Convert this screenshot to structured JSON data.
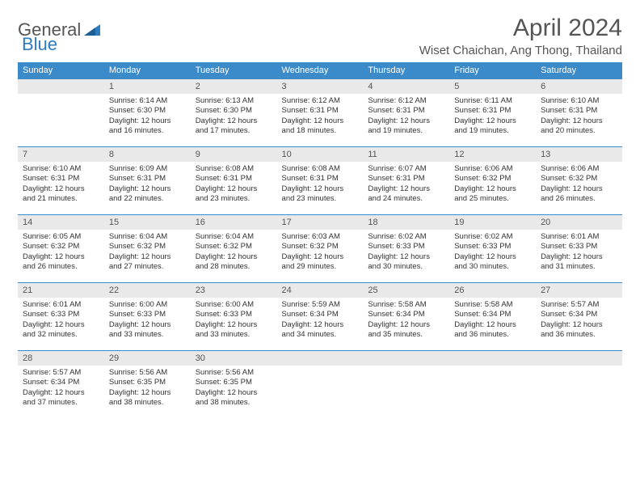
{
  "logo": {
    "text_general": "General",
    "text_blue": "Blue"
  },
  "title": "April 2024",
  "location": "Wiset Chaichan, Ang Thong, Thailand",
  "colors": {
    "header_bg": "#3b8bca",
    "header_text": "#ffffff",
    "daynum_bg": "#e9e9e9",
    "daynum_border": "#3b8bca",
    "body_text": "#333333",
    "title_text": "#555555",
    "logo_blue": "#2f7bbf"
  },
  "weekdays": [
    "Sunday",
    "Monday",
    "Tuesday",
    "Wednesday",
    "Thursday",
    "Friday",
    "Saturday"
  ],
  "grid": [
    [
      {
        "day": "",
        "lines": []
      },
      {
        "day": "1",
        "lines": [
          "Sunrise: 6:14 AM",
          "Sunset: 6:30 PM",
          "Daylight: 12 hours and 16 minutes."
        ]
      },
      {
        "day": "2",
        "lines": [
          "Sunrise: 6:13 AM",
          "Sunset: 6:30 PM",
          "Daylight: 12 hours and 17 minutes."
        ]
      },
      {
        "day": "3",
        "lines": [
          "Sunrise: 6:12 AM",
          "Sunset: 6:31 PM",
          "Daylight: 12 hours and 18 minutes."
        ]
      },
      {
        "day": "4",
        "lines": [
          "Sunrise: 6:12 AM",
          "Sunset: 6:31 PM",
          "Daylight: 12 hours and 19 minutes."
        ]
      },
      {
        "day": "5",
        "lines": [
          "Sunrise: 6:11 AM",
          "Sunset: 6:31 PM",
          "Daylight: 12 hours and 19 minutes."
        ]
      },
      {
        "day": "6",
        "lines": [
          "Sunrise: 6:10 AM",
          "Sunset: 6:31 PM",
          "Daylight: 12 hours and 20 minutes."
        ]
      }
    ],
    [
      {
        "day": "7",
        "lines": [
          "Sunrise: 6:10 AM",
          "Sunset: 6:31 PM",
          "Daylight: 12 hours and 21 minutes."
        ]
      },
      {
        "day": "8",
        "lines": [
          "Sunrise: 6:09 AM",
          "Sunset: 6:31 PM",
          "Daylight: 12 hours and 22 minutes."
        ]
      },
      {
        "day": "9",
        "lines": [
          "Sunrise: 6:08 AM",
          "Sunset: 6:31 PM",
          "Daylight: 12 hours and 23 minutes."
        ]
      },
      {
        "day": "10",
        "lines": [
          "Sunrise: 6:08 AM",
          "Sunset: 6:31 PM",
          "Daylight: 12 hours and 23 minutes."
        ]
      },
      {
        "day": "11",
        "lines": [
          "Sunrise: 6:07 AM",
          "Sunset: 6:31 PM",
          "Daylight: 12 hours and 24 minutes."
        ]
      },
      {
        "day": "12",
        "lines": [
          "Sunrise: 6:06 AM",
          "Sunset: 6:32 PM",
          "Daylight: 12 hours and 25 minutes."
        ]
      },
      {
        "day": "13",
        "lines": [
          "Sunrise: 6:06 AM",
          "Sunset: 6:32 PM",
          "Daylight: 12 hours and 26 minutes."
        ]
      }
    ],
    [
      {
        "day": "14",
        "lines": [
          "Sunrise: 6:05 AM",
          "Sunset: 6:32 PM",
          "Daylight: 12 hours and 26 minutes."
        ]
      },
      {
        "day": "15",
        "lines": [
          "Sunrise: 6:04 AM",
          "Sunset: 6:32 PM",
          "Daylight: 12 hours and 27 minutes."
        ]
      },
      {
        "day": "16",
        "lines": [
          "Sunrise: 6:04 AM",
          "Sunset: 6:32 PM",
          "Daylight: 12 hours and 28 minutes."
        ]
      },
      {
        "day": "17",
        "lines": [
          "Sunrise: 6:03 AM",
          "Sunset: 6:32 PM",
          "Daylight: 12 hours and 29 minutes."
        ]
      },
      {
        "day": "18",
        "lines": [
          "Sunrise: 6:02 AM",
          "Sunset: 6:33 PM",
          "Daylight: 12 hours and 30 minutes."
        ]
      },
      {
        "day": "19",
        "lines": [
          "Sunrise: 6:02 AM",
          "Sunset: 6:33 PM",
          "Daylight: 12 hours and 30 minutes."
        ]
      },
      {
        "day": "20",
        "lines": [
          "Sunrise: 6:01 AM",
          "Sunset: 6:33 PM",
          "Daylight: 12 hours and 31 minutes."
        ]
      }
    ],
    [
      {
        "day": "21",
        "lines": [
          "Sunrise: 6:01 AM",
          "Sunset: 6:33 PM",
          "Daylight: 12 hours and 32 minutes."
        ]
      },
      {
        "day": "22",
        "lines": [
          "Sunrise: 6:00 AM",
          "Sunset: 6:33 PM",
          "Daylight: 12 hours and 33 minutes."
        ]
      },
      {
        "day": "23",
        "lines": [
          "Sunrise: 6:00 AM",
          "Sunset: 6:33 PM",
          "Daylight: 12 hours and 33 minutes."
        ]
      },
      {
        "day": "24",
        "lines": [
          "Sunrise: 5:59 AM",
          "Sunset: 6:34 PM",
          "Daylight: 12 hours and 34 minutes."
        ]
      },
      {
        "day": "25",
        "lines": [
          "Sunrise: 5:58 AM",
          "Sunset: 6:34 PM",
          "Daylight: 12 hours and 35 minutes."
        ]
      },
      {
        "day": "26",
        "lines": [
          "Sunrise: 5:58 AM",
          "Sunset: 6:34 PM",
          "Daylight: 12 hours and 36 minutes."
        ]
      },
      {
        "day": "27",
        "lines": [
          "Sunrise: 5:57 AM",
          "Sunset: 6:34 PM",
          "Daylight: 12 hours and 36 minutes."
        ]
      }
    ],
    [
      {
        "day": "28",
        "lines": [
          "Sunrise: 5:57 AM",
          "Sunset: 6:34 PM",
          "Daylight: 12 hours and 37 minutes."
        ]
      },
      {
        "day": "29",
        "lines": [
          "Sunrise: 5:56 AM",
          "Sunset: 6:35 PM",
          "Daylight: 12 hours and 38 minutes."
        ]
      },
      {
        "day": "30",
        "lines": [
          "Sunrise: 5:56 AM",
          "Sunset: 6:35 PM",
          "Daylight: 12 hours and 38 minutes."
        ]
      },
      {
        "day": "",
        "lines": []
      },
      {
        "day": "",
        "lines": []
      },
      {
        "day": "",
        "lines": []
      },
      {
        "day": "",
        "lines": []
      }
    ]
  ]
}
